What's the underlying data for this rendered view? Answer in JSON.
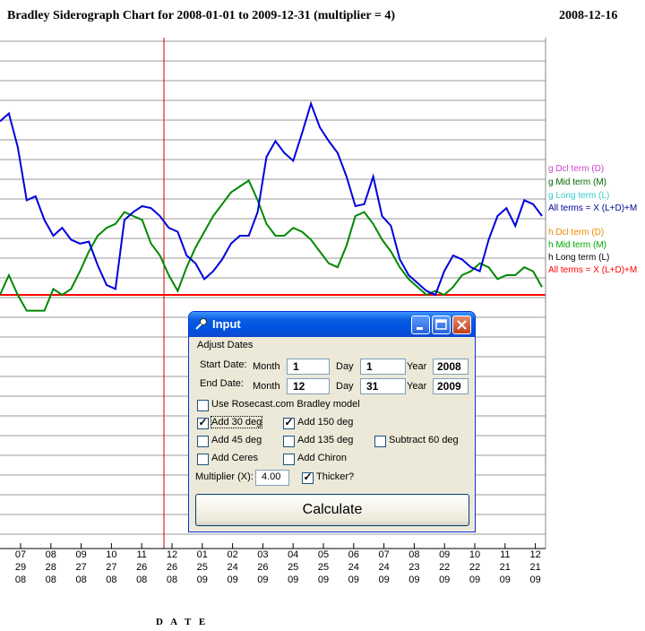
{
  "title": "Bradley Siderograph Chart for 2008-01-01 to 2009-12-31 (multiplier = 4)",
  "date": "2008-12-16",
  "xaxis_title": "D A T E",
  "x_ticks": [
    {
      "m": "07",
      "d": "29",
      "y": "08"
    },
    {
      "m": "08",
      "d": "28",
      "y": "08"
    },
    {
      "m": "09",
      "d": "27",
      "y": "08"
    },
    {
      "m": "10",
      "d": "27",
      "y": "08"
    },
    {
      "m": "11",
      "d": "26",
      "y": "08"
    },
    {
      "m": "12",
      "d": "26",
      "y": "08"
    },
    {
      "m": "01",
      "d": "25",
      "y": "09"
    },
    {
      "m": "02",
      "d": "24",
      "y": "09"
    },
    {
      "m": "03",
      "d": "26",
      "y": "09"
    },
    {
      "m": "04",
      "d": "25",
      "y": "09"
    },
    {
      "m": "05",
      "d": "25",
      "y": "09"
    },
    {
      "m": "06",
      "d": "24",
      "y": "09"
    },
    {
      "m": "07",
      "d": "24",
      "y": "09"
    },
    {
      "m": "08",
      "d": "23",
      "y": "09"
    },
    {
      "m": "09",
      "d": "22",
      "y": "09"
    },
    {
      "m": "10",
      "d": "22",
      "y": "09"
    },
    {
      "m": "11",
      "d": "21",
      "y": "09"
    },
    {
      "m": "12",
      "d": "21",
      "y": "09"
    }
  ],
  "legend": [
    {
      "text": "g Dcl term (D)",
      "color": "#cc44cc"
    },
    {
      "text": "g Mid term (M)",
      "color": "#006600"
    },
    {
      "text": "g Long term (L)",
      "color": "#33cccc"
    },
    {
      "text": "All terms = X (L+D)+M",
      "color": "#000099"
    },
    {
      "text": "h Dcl term (D)",
      "color": "#ee8800"
    },
    {
      "text": "h Mid term (M)",
      "color": "#00aa00"
    },
    {
      "text": "h Long term (L)",
      "color": "#000000"
    },
    {
      "text": "All terms = X (L+D)+M",
      "color": "#ff0000"
    }
  ],
  "chart_data": {
    "type": "line",
    "series": [
      {
        "name": "All terms = X (L+D)+M",
        "color": "#0000dd",
        "values": [
          88,
          92,
          75,
          48,
          50,
          38,
          30,
          34,
          28,
          26,
          27,
          15,
          5,
          3,
          38,
          42,
          45,
          44,
          40,
          34,
          32,
          20,
          16,
          8,
          12,
          18,
          26,
          30,
          30,
          42,
          70,
          78,
          72,
          68,
          82,
          97,
          85,
          78,
          72,
          60,
          45,
          46,
          60,
          40,
          35,
          18,
          10,
          6,
          2,
          0,
          12,
          20,
          18,
          14,
          12,
          28,
          40,
          44,
          35,
          48,
          46,
          40
        ]
      },
      {
        "name": "h Mid term (M)",
        "color": "#008800",
        "values": [
          0,
          10,
          0,
          -8,
          -8,
          -8,
          3,
          0,
          3,
          12,
          22,
          30,
          34,
          36,
          42,
          40,
          38,
          26,
          20,
          10,
          2,
          14,
          24,
          32,
          40,
          46,
          52,
          55,
          58,
          48,
          36,
          30,
          30,
          34,
          32,
          28,
          22,
          16,
          14,
          25,
          40,
          42,
          36,
          28,
          22,
          14,
          8,
          4,
          0,
          2,
          0,
          4,
          10,
          12,
          16,
          14,
          8,
          10,
          10,
          14,
          12,
          4
        ]
      }
    ],
    "zero_line_color": "#ff0000",
    "cursor_line_color": "#cc0000"
  },
  "dialog": {
    "title": "Input",
    "adjust_dates": "Adjust Dates",
    "start_label": "Start Date:",
    "end_label": "End Date:",
    "month_label": "Month",
    "day_label": "Day",
    "year_label": "Year",
    "start_month": "1",
    "start_day": "1",
    "start_year": "2008",
    "end_month": "12",
    "end_day": "31",
    "end_year": "2009",
    "use_rosecast": "Use Rosecast.com Bradley model",
    "add_30": "Add 30 deg",
    "add_150": "Add 150 deg",
    "add_45": "Add 45 deg",
    "add_135": "Add 135 deg",
    "subtract_60": "Subtract 60 deg",
    "add_ceres": "Add Ceres",
    "add_chiron": "Add Chiron",
    "multiplier_label": "Multiplier (X):",
    "multiplier_value": "4.00",
    "thicker": "Thicker?",
    "calculate": "Calculate",
    "checked": {
      "use_rosecast": false,
      "add_30": true,
      "add_150": true,
      "add_45": false,
      "add_135": false,
      "subtract_60": false,
      "add_ceres": false,
      "add_chiron": false,
      "thicker": true
    }
  }
}
